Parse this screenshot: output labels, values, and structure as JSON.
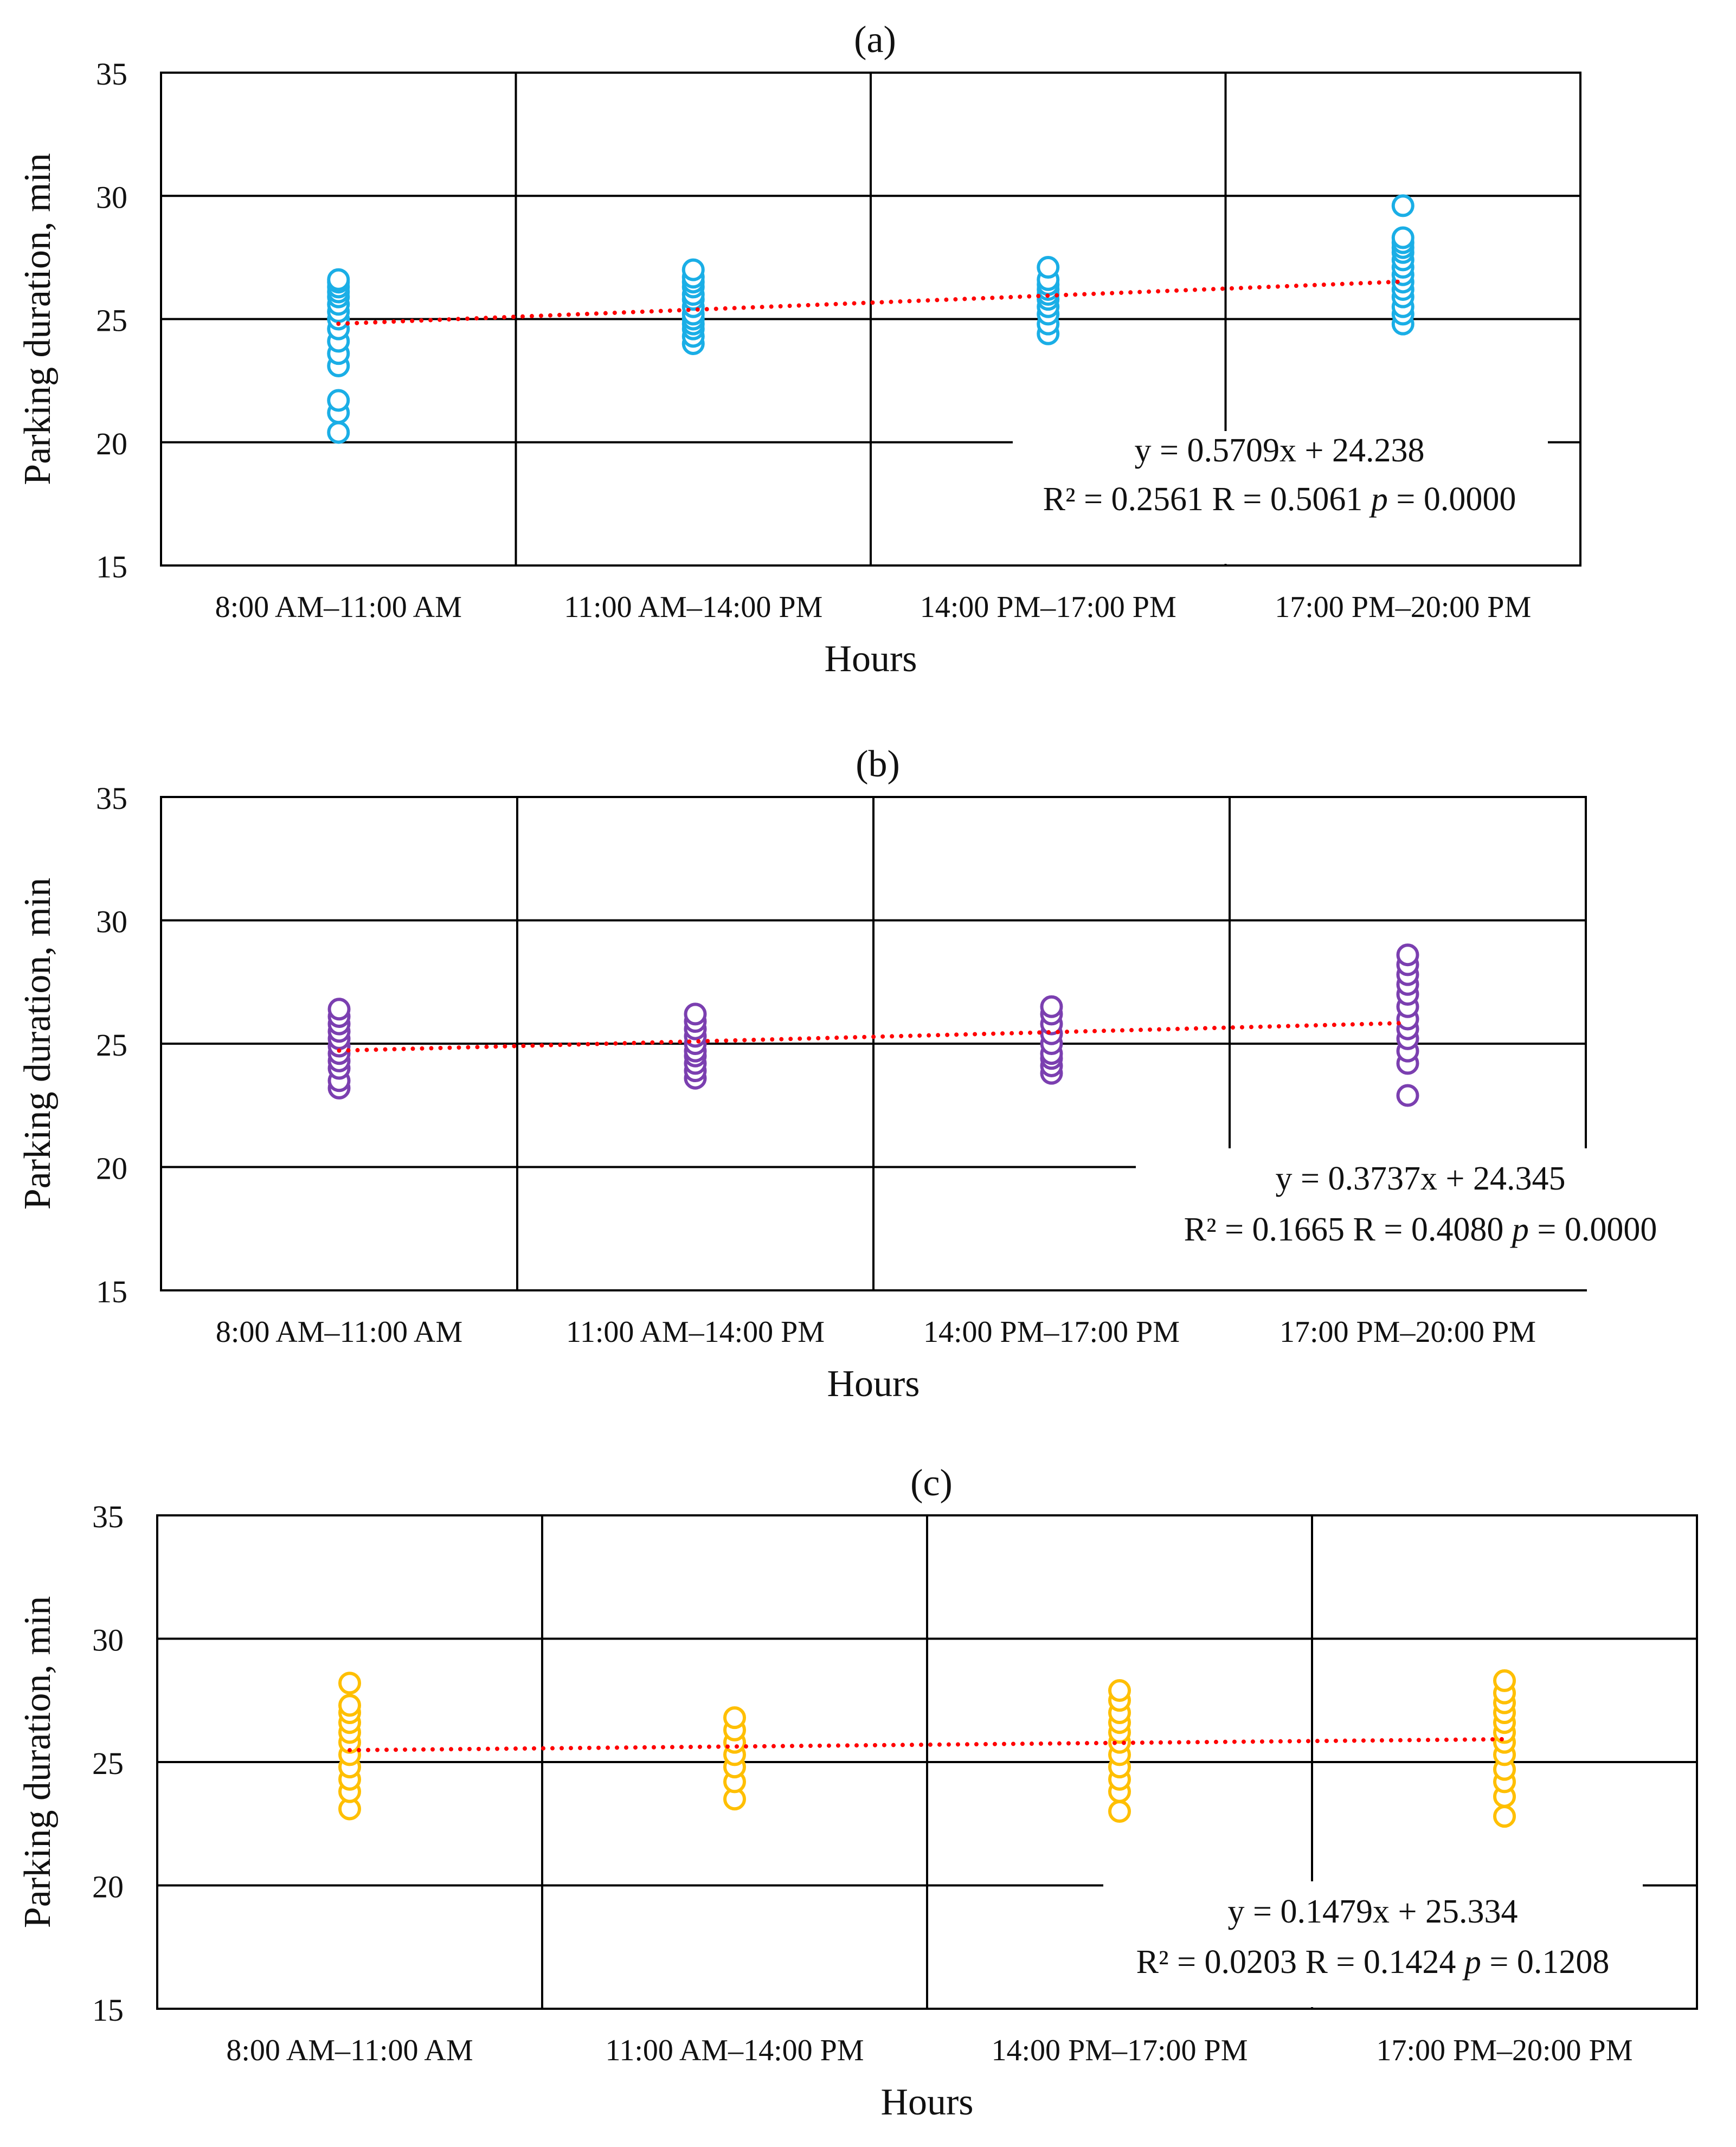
{
  "chart_data": [
    {
      "type": "scatter",
      "title": "(a)",
      "xlabel": "Hours",
      "ylabel": "Parking duration, min",
      "categories": [
        "8:00 AM–11:00 AM",
        "11:00 AM–14:00 PM",
        "14:00 PM–17:00 PM",
        "17:00 PM–20:00 PM"
      ],
      "ylim": [
        15,
        35
      ],
      "yticks": [
        "15",
        "20",
        "25",
        "30",
        "35"
      ],
      "grid": true,
      "marker_color": "#1AAEE6",
      "trend_color": "#FF0000",
      "trendline": {
        "slope": 0.5709,
        "intercept": 24.238
      },
      "equation": "y = 0.5709x + 24.238",
      "stats": {
        "r2_label": "R² = 0.2561 R = 0.5061",
        "p_symbol": "p",
        "p_value": "= 0.0000"
      },
      "points": [
        [
          20.4,
          21.2,
          21.7,
          23.1,
          23.6,
          24.1,
          24.6,
          25.0,
          25.3,
          25.6,
          25.9,
          26.1,
          26.3,
          26.5,
          26.6
        ],
        [
          24.0,
          24.3,
          24.6,
          24.8,
          25.0,
          25.2,
          25.5,
          25.8,
          26.0,
          26.3,
          26.5,
          26.7,
          27.0
        ],
        [
          24.4,
          24.8,
          25.2,
          25.5,
          25.8,
          26.0,
          26.2,
          26.4,
          26.6,
          27.1
        ],
        [
          24.8,
          25.2,
          25.5,
          25.9,
          26.2,
          26.5,
          26.8,
          27.1,
          27.4,
          27.7,
          27.9,
          28.1,
          28.3,
          29.6
        ]
      ]
    },
    {
      "type": "scatter",
      "title": "(b)",
      "xlabel": "Hours",
      "ylabel": "Parking duration, min",
      "categories": [
        "8:00 AM–11:00 AM",
        "11:00 AM–14:00 PM",
        "14:00 PM–17:00 PM",
        "17:00 PM–20:00 PM"
      ],
      "ylim": [
        15,
        35
      ],
      "yticks": [
        "15",
        "20",
        "25",
        "30",
        "35"
      ],
      "grid": true,
      "marker_color": "#7B3FB0",
      "trend_color": "#FF0000",
      "trendline": {
        "slope": 0.3737,
        "intercept": 24.345
      },
      "equation": "y = 0.3737x + 24.345",
      "stats": {
        "r2_label": "R² = 0.1665 R = 0.4080",
        "p_symbol": "p",
        "p_value": "= 0.0000"
      },
      "points": [
        [
          23.2,
          23.5,
          24.0,
          24.3,
          24.6,
          24.9,
          25.2,
          25.5,
          25.8,
          26.1,
          26.4
        ],
        [
          23.6,
          23.9,
          24.2,
          24.5,
          24.7,
          25.0,
          25.3,
          25.6,
          25.9,
          26.2
        ],
        [
          23.8,
          24.1,
          24.4,
          24.6,
          25.0,
          25.4,
          25.8,
          26.2,
          26.5
        ],
        [
          22.9,
          24.2,
          24.7,
          25.2,
          25.6,
          26.0,
          26.5,
          27.0,
          27.4,
          27.8,
          28.2,
          28.6
        ]
      ]
    },
    {
      "type": "scatter",
      "title": "(c)",
      "xlabel": "Hours",
      "ylabel": "Parking duration, min",
      "categories": [
        "8:00 AM–11:00 AM",
        "11:00 AM–14:00 PM",
        "14:00 PM–17:00 PM",
        "17:00 PM–20:00 PM"
      ],
      "ylim": [
        15,
        35
      ],
      "yticks": [
        "15",
        "20",
        "25",
        "30",
        "35"
      ],
      "grid": true,
      "marker_color": "#FFBF00",
      "trend_color": "#FF0000",
      "trendline": {
        "slope": 0.1479,
        "intercept": 25.334
      },
      "equation": "y = 0.1479x + 25.334",
      "stats": {
        "r2_label": "R² = 0.0203 R = 0.1424",
        "p_symbol": "p",
        "p_value": "= 0.1208"
      },
      "points": [
        [
          23.1,
          23.8,
          24.3,
          24.8,
          25.3,
          25.8,
          26.2,
          26.6,
          27.0,
          27.3,
          28.2
        ],
        [
          23.5,
          24.2,
          24.8,
          25.3,
          25.8,
          26.3,
          26.8
        ],
        [
          23.0,
          23.8,
          24.3,
          24.8,
          25.3,
          25.8,
          26.2,
          26.6,
          27.0,
          27.5,
          27.9
        ],
        [
          22.8,
          23.6,
          24.2,
          24.7,
          25.3,
          25.8,
          26.2,
          26.6,
          27.0,
          27.4,
          27.8,
          28.3
        ]
      ]
    }
  ]
}
